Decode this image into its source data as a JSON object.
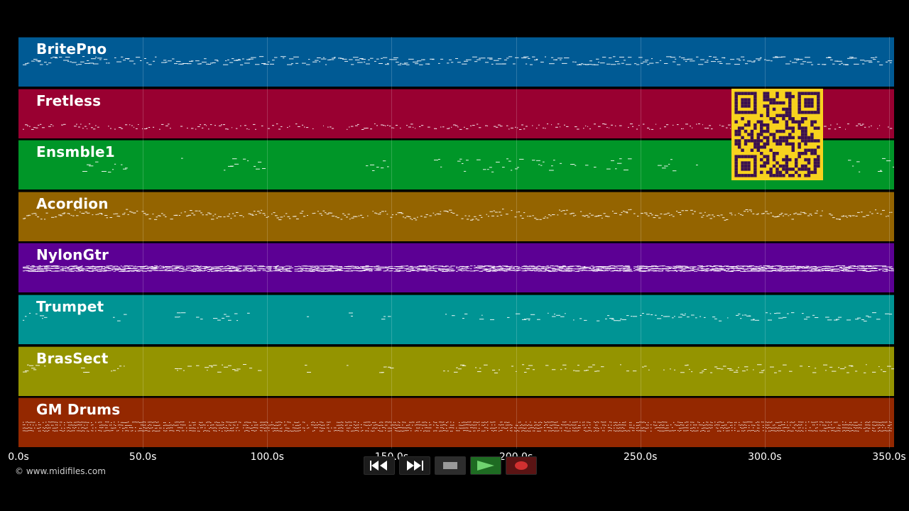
{
  "tracks": [
    {
      "name": "BritePno",
      "color": "#005a94",
      "pattern": "dense-mid"
    },
    {
      "name": "Fretless",
      "color": "#990031",
      "pattern": "low-line"
    },
    {
      "name": "Ensmble1",
      "color": "#009628",
      "pattern": "sparse"
    },
    {
      "name": "Acordion",
      "color": "#946400",
      "pattern": "wavy"
    },
    {
      "name": "NylonGtr",
      "color": "#5c0094",
      "pattern": "dense-block"
    },
    {
      "name": "Trumpet",
      "color": "#009494",
      "pattern": "phrases"
    },
    {
      "name": "BrasSect",
      "color": "#949400",
      "pattern": "phrases"
    },
    {
      "name": "GM Drums",
      "color": "#942800",
      "pattern": "drums"
    }
  ],
  "timeline": {
    "max_seconds": 352,
    "ticks": [
      "0.0s",
      "50.0s",
      "100.0s",
      "150.0s",
      "200.0s",
      "250.0s",
      "300.0s",
      "350.0s"
    ],
    "tick_values": [
      0,
      50,
      100,
      150,
      200,
      250,
      300,
      350
    ]
  },
  "footer": {
    "copyright": "© www.midifiles.com"
  },
  "transport": [
    {
      "name": "rewind-button",
      "icon": "rewind-icon",
      "color": "#ffffff"
    },
    {
      "name": "fast-forward-button",
      "icon": "fast-forward-icon",
      "color": "#ffffff"
    },
    {
      "name": "stop-button",
      "icon": "stop-icon",
      "color": "#9a9a9a"
    },
    {
      "name": "play-button",
      "icon": "play-icon",
      "color": "#4caf50"
    },
    {
      "name": "record-button",
      "icon": "record-icon",
      "color": "#d03030"
    }
  ],
  "qr": {
    "icon": "qr-code-icon",
    "background": "#f7d21e",
    "foreground": "#3a1050"
  }
}
